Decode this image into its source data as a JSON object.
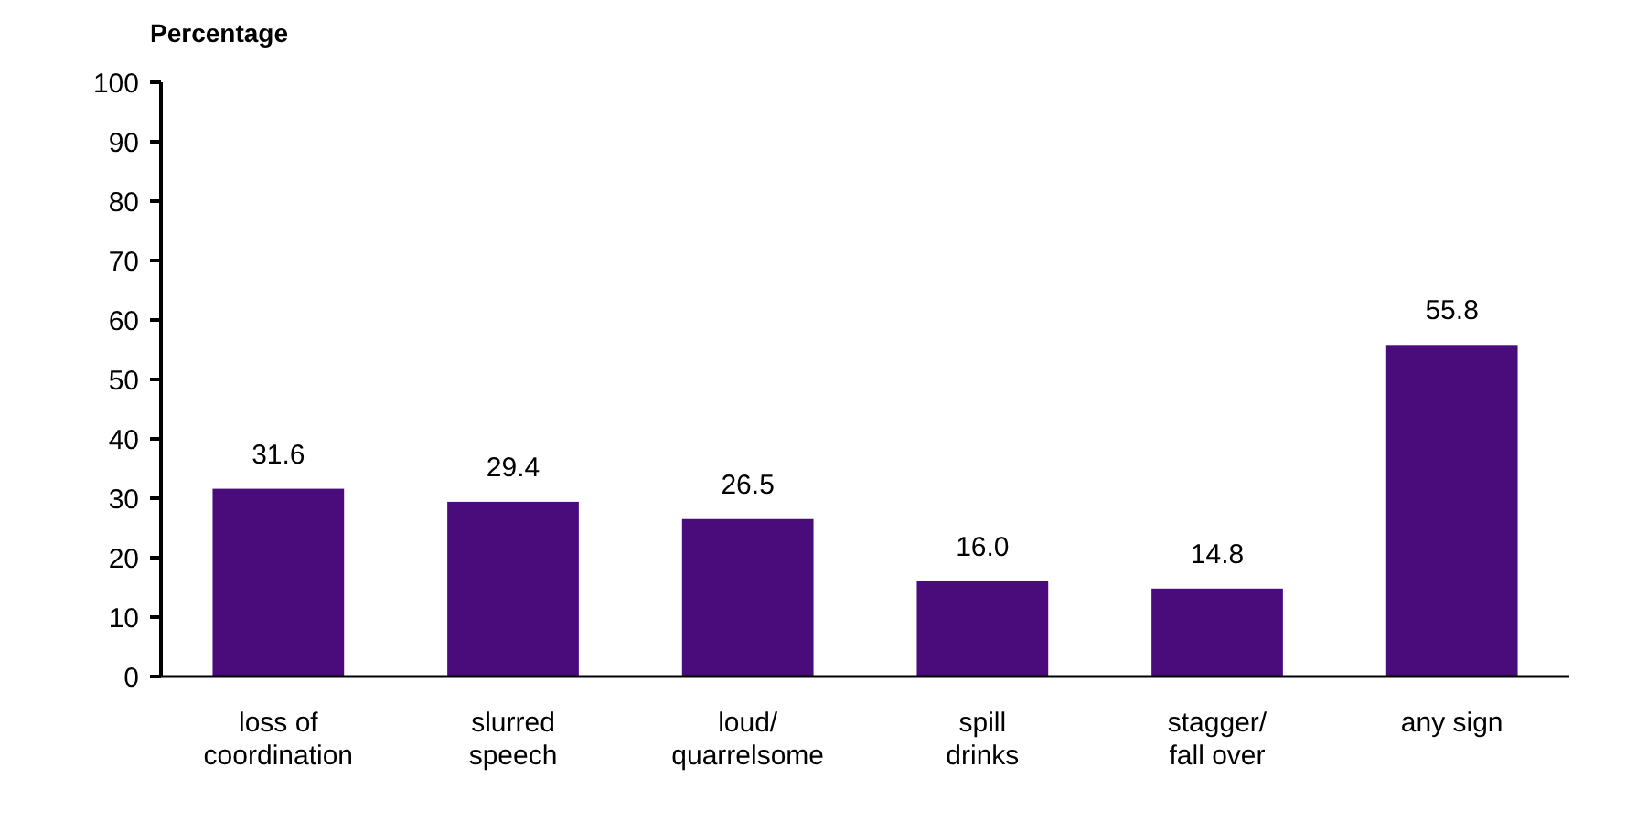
{
  "chart_data": {
    "type": "bar",
    "ylabel": "Percentage",
    "categories": [
      "loss of\ncoordination",
      "slurred\nspeech",
      "loud/\nquarrelsome",
      "spill\ndrinks",
      "stagger/\nfall over",
      "any sign"
    ],
    "values": [
      31.6,
      29.4,
      26.5,
      16.0,
      14.8,
      55.8
    ],
    "value_labels": [
      "31.6",
      "29.4",
      "26.5",
      "16.0",
      "14.8",
      "55.8"
    ],
    "color": "#4a0c7a",
    "ylim": [
      0,
      100
    ],
    "yticks": [
      0,
      10,
      20,
      30,
      40,
      50,
      60,
      70,
      80,
      90,
      100
    ],
    "grid": false
  }
}
